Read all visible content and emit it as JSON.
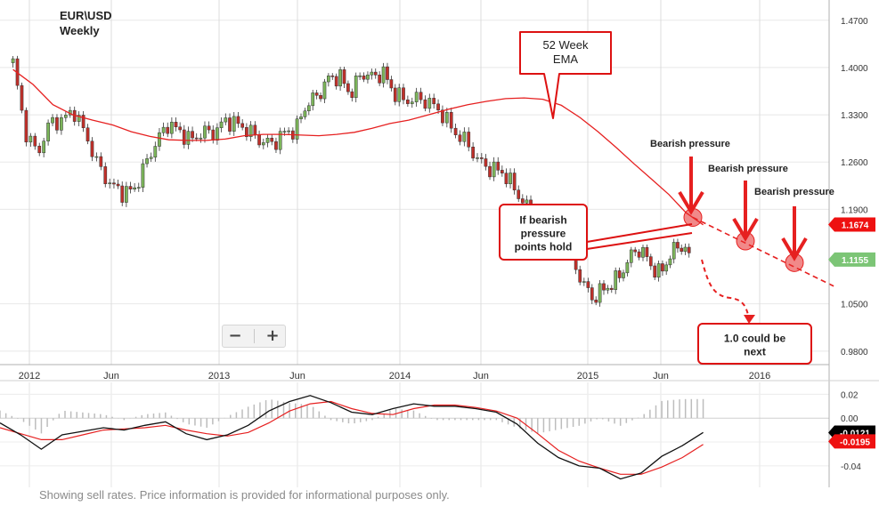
{
  "chart_data": {
    "type": "candlestick",
    "title": "EUR\\USD",
    "subtitle": "Weekly",
    "x_tick_labels": [
      "2012",
      "Jun",
      "2013",
      "Jun",
      "2014",
      "Jun",
      "2015",
      "Jun",
      "2016"
    ],
    "x_tick_dates": [
      "2012-01",
      "2012-06",
      "2013-01",
      "2013-06",
      "2014-01",
      "2014-06",
      "2015-01",
      "2015-06",
      "2016-01"
    ],
    "y_tick_labels": [
      "1.4700",
      "1.4000",
      "1.3300",
      "1.2600",
      "1.1900",
      "1.0500",
      "0.9800"
    ],
    "ylim": [
      0.96,
      1.5
    ],
    "series": [
      {
        "name": "Price",
        "values": [
          1.407,
          1.305,
          1.272,
          1.318,
          1.322,
          1.336,
          1.298,
          1.253,
          1.226,
          1.215,
          1.218,
          1.256,
          1.291,
          1.317,
          1.305,
          1.292,
          1.305,
          1.303,
          1.322,
          1.316,
          1.306,
          1.291,
          1.287,
          1.303,
          1.308,
          1.347,
          1.358,
          1.384,
          1.387,
          1.36,
          1.392,
          1.386,
          1.392,
          1.362,
          1.351,
          1.354,
          1.348,
          1.332,
          1.305,
          1.29,
          1.262,
          1.25,
          1.247,
          1.226,
          1.198,
          1.183,
          1.142,
          1.13,
          1.127,
          1.087,
          1.058,
          1.071,
          1.081,
          1.104,
          1.132,
          1.12,
          1.092,
          1.115,
          1.14,
          1.121
        ]
      },
      {
        "name": "52 Week EMA",
        "values": [
          1.397,
          1.375,
          1.345,
          1.33,
          1.322,
          1.315,
          1.305,
          1.298,
          1.293,
          1.292,
          1.292,
          1.294,
          1.299,
          1.301,
          1.301,
          1.3,
          1.299,
          1.301,
          1.304,
          1.31,
          1.317,
          1.322,
          1.33,
          1.338,
          1.345,
          1.35,
          1.354,
          1.355,
          1.353,
          1.344,
          1.326,
          1.305,
          1.282,
          1.258,
          1.235,
          1.212,
          1.185,
          1.167
        ]
      }
    ],
    "line_price_x_range": [
      "2011-12",
      "2015-08"
    ],
    "ema_x_range": [
      "2011-12",
      "2015-09"
    ],
    "markers": [
      {
        "label": "1.1674",
        "value": 1.1674,
        "color": "#ee1111"
      },
      {
        "label": "1.1155",
        "value": 1.1155,
        "color": "#7cc576"
      }
    ],
    "trendline": {
      "style": "dashed",
      "color": "#e62020",
      "from_value": 1.178,
      "to_value": 1.075
    },
    "annotations": [
      {
        "id": "ema",
        "text": [
          "52 Week",
          "EMA"
        ]
      },
      {
        "id": "hold",
        "text": [
          "If bearish",
          "pressure",
          "points hold"
        ]
      },
      {
        "id": "next",
        "text": [
          "1.0 could be",
          "next"
        ]
      },
      {
        "id": "bp1",
        "text": [
          "Bearish pressure"
        ]
      },
      {
        "id": "bp2",
        "text": [
          "Bearish pressure"
        ]
      },
      {
        "id": "bp3",
        "text": [
          "Bearish pressure"
        ]
      }
    ],
    "macd": {
      "y_tick_labels": [
        "0.02",
        "0.00",
        "-0.02",
        "-0.04"
      ],
      "ylim": [
        -0.058,
        0.03
      ],
      "macd_line": [
        -0.004,
        -0.014,
        -0.026,
        -0.014,
        -0.011,
        -0.008,
        -0.01,
        -0.006,
        -0.003,
        -0.013,
        -0.018,
        -0.014,
        -0.006,
        0.006,
        0.014,
        0.019,
        0.013,
        0.005,
        0.003,
        0.008,
        0.012,
        0.01,
        0.01,
        0.008,
        0.005,
        -0.005,
        -0.021,
        -0.033,
        -0.04,
        -0.042,
        -0.051,
        -0.046,
        -0.032,
        -0.023,
        -0.012
      ],
      "signal_line": [
        -0.008,
        -0.013,
        -0.018,
        -0.018,
        -0.014,
        -0.01,
        -0.009,
        -0.008,
        -0.006,
        -0.01,
        -0.013,
        -0.015,
        -0.012,
        -0.004,
        0.006,
        0.012,
        0.014,
        0.008,
        0.004,
        0.003,
        0.008,
        0.011,
        0.011,
        0.009,
        0.006,
        0.0,
        -0.013,
        -0.027,
        -0.036,
        -0.042,
        -0.047,
        -0.047,
        -0.041,
        -0.033,
        -0.022
      ],
      "markers": [
        {
          "label": "-0.0121",
          "value": -0.0121,
          "color": "#000000"
        },
        {
          "label": "-0.0195",
          "value": -0.0195,
          "color": "#ee1111"
        }
      ]
    },
    "grid": true
  },
  "ui": {
    "zoom_out": "−",
    "zoom_in": "+",
    "footer": "Showing sell rates. Price information is provided for informational purposes only."
  }
}
